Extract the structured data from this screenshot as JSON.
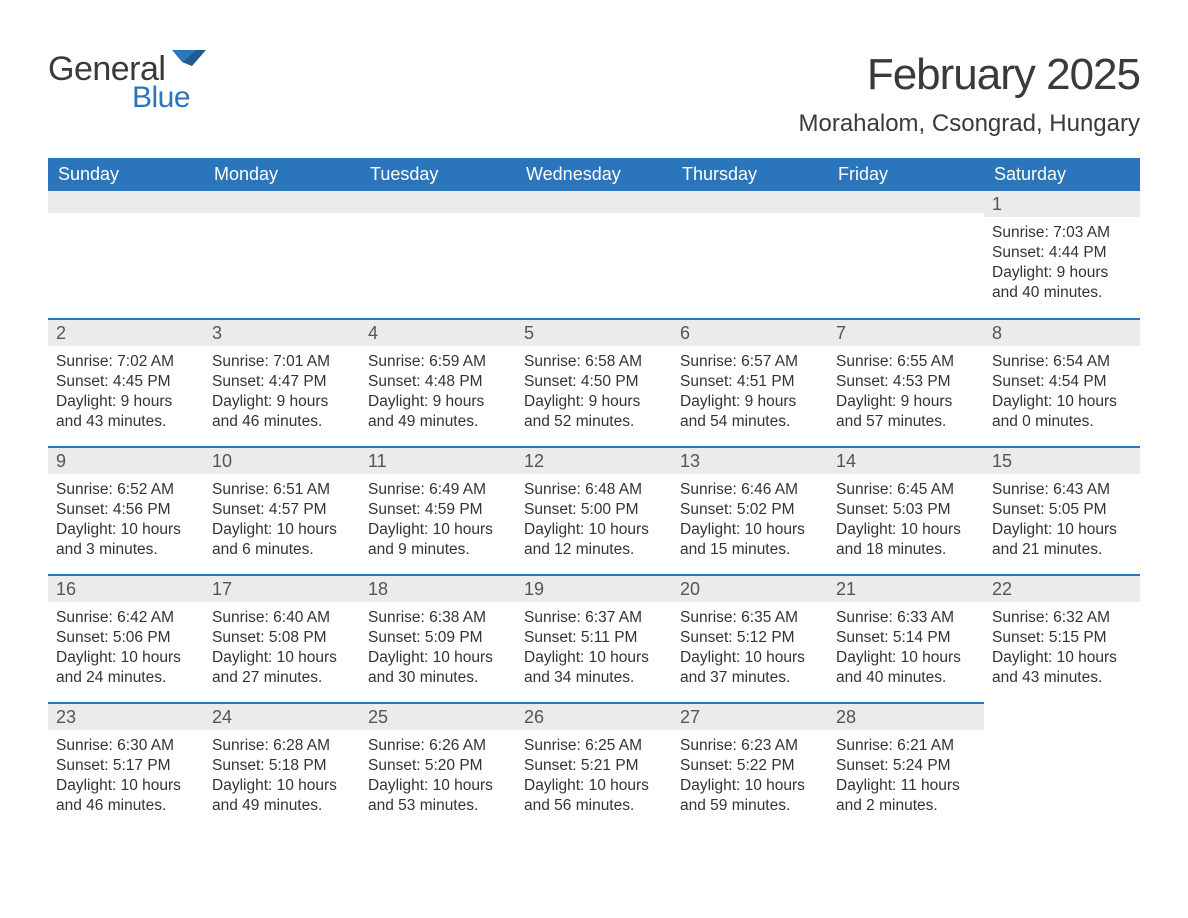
{
  "logo": {
    "general": "General",
    "blue": "Blue"
  },
  "title": "February 2025",
  "location": "Morahalom, Csongrad, Hungary",
  "columns": [
    "Sunday",
    "Monday",
    "Tuesday",
    "Wednesday",
    "Thursday",
    "Friday",
    "Saturday"
  ],
  "colors": {
    "header_bg": "#2a75bb",
    "header_text": "#ffffff",
    "daynum_bg": "#ebebeb",
    "cell_border": "#2a75bb",
    "logo_blue": "#2a75bb",
    "body_text": "#333333",
    "page_bg": "#ffffff"
  },
  "weeks": [
    [
      {
        "n": "",
        "sr": "",
        "ss": "",
        "dl": ""
      },
      {
        "n": "",
        "sr": "",
        "ss": "",
        "dl": ""
      },
      {
        "n": "",
        "sr": "",
        "ss": "",
        "dl": ""
      },
      {
        "n": "",
        "sr": "",
        "ss": "",
        "dl": ""
      },
      {
        "n": "",
        "sr": "",
        "ss": "",
        "dl": ""
      },
      {
        "n": "",
        "sr": "",
        "ss": "",
        "dl": ""
      },
      {
        "n": "1",
        "sr": "Sunrise: 7:03 AM",
        "ss": "Sunset: 4:44 PM",
        "dl": "Daylight: 9 hours and 40 minutes."
      }
    ],
    [
      {
        "n": "2",
        "sr": "Sunrise: 7:02 AM",
        "ss": "Sunset: 4:45 PM",
        "dl": "Daylight: 9 hours and 43 minutes."
      },
      {
        "n": "3",
        "sr": "Sunrise: 7:01 AM",
        "ss": "Sunset: 4:47 PM",
        "dl": "Daylight: 9 hours and 46 minutes."
      },
      {
        "n": "4",
        "sr": "Sunrise: 6:59 AM",
        "ss": "Sunset: 4:48 PM",
        "dl": "Daylight: 9 hours and 49 minutes."
      },
      {
        "n": "5",
        "sr": "Sunrise: 6:58 AM",
        "ss": "Sunset: 4:50 PM",
        "dl": "Daylight: 9 hours and 52 minutes."
      },
      {
        "n": "6",
        "sr": "Sunrise: 6:57 AM",
        "ss": "Sunset: 4:51 PM",
        "dl": "Daylight: 9 hours and 54 minutes."
      },
      {
        "n": "7",
        "sr": "Sunrise: 6:55 AM",
        "ss": "Sunset: 4:53 PM",
        "dl": "Daylight: 9 hours and 57 minutes."
      },
      {
        "n": "8",
        "sr": "Sunrise: 6:54 AM",
        "ss": "Sunset: 4:54 PM",
        "dl": "Daylight: 10 hours and 0 minutes."
      }
    ],
    [
      {
        "n": "9",
        "sr": "Sunrise: 6:52 AM",
        "ss": "Sunset: 4:56 PM",
        "dl": "Daylight: 10 hours and 3 minutes."
      },
      {
        "n": "10",
        "sr": "Sunrise: 6:51 AM",
        "ss": "Sunset: 4:57 PM",
        "dl": "Daylight: 10 hours and 6 minutes."
      },
      {
        "n": "11",
        "sr": "Sunrise: 6:49 AM",
        "ss": "Sunset: 4:59 PM",
        "dl": "Daylight: 10 hours and 9 minutes."
      },
      {
        "n": "12",
        "sr": "Sunrise: 6:48 AM",
        "ss": "Sunset: 5:00 PM",
        "dl": "Daylight: 10 hours and 12 minutes."
      },
      {
        "n": "13",
        "sr": "Sunrise: 6:46 AM",
        "ss": "Sunset: 5:02 PM",
        "dl": "Daylight: 10 hours and 15 minutes."
      },
      {
        "n": "14",
        "sr": "Sunrise: 6:45 AM",
        "ss": "Sunset: 5:03 PM",
        "dl": "Daylight: 10 hours and 18 minutes."
      },
      {
        "n": "15",
        "sr": "Sunrise: 6:43 AM",
        "ss": "Sunset: 5:05 PM",
        "dl": "Daylight: 10 hours and 21 minutes."
      }
    ],
    [
      {
        "n": "16",
        "sr": "Sunrise: 6:42 AM",
        "ss": "Sunset: 5:06 PM",
        "dl": "Daylight: 10 hours and 24 minutes."
      },
      {
        "n": "17",
        "sr": "Sunrise: 6:40 AM",
        "ss": "Sunset: 5:08 PM",
        "dl": "Daylight: 10 hours and 27 minutes."
      },
      {
        "n": "18",
        "sr": "Sunrise: 6:38 AM",
        "ss": "Sunset: 5:09 PM",
        "dl": "Daylight: 10 hours and 30 minutes."
      },
      {
        "n": "19",
        "sr": "Sunrise: 6:37 AM",
        "ss": "Sunset: 5:11 PM",
        "dl": "Daylight: 10 hours and 34 minutes."
      },
      {
        "n": "20",
        "sr": "Sunrise: 6:35 AM",
        "ss": "Sunset: 5:12 PM",
        "dl": "Daylight: 10 hours and 37 minutes."
      },
      {
        "n": "21",
        "sr": "Sunrise: 6:33 AM",
        "ss": "Sunset: 5:14 PM",
        "dl": "Daylight: 10 hours and 40 minutes."
      },
      {
        "n": "22",
        "sr": "Sunrise: 6:32 AM",
        "ss": "Sunset: 5:15 PM",
        "dl": "Daylight: 10 hours and 43 minutes."
      }
    ],
    [
      {
        "n": "23",
        "sr": "Sunrise: 6:30 AM",
        "ss": "Sunset: 5:17 PM",
        "dl": "Daylight: 10 hours and 46 minutes."
      },
      {
        "n": "24",
        "sr": "Sunrise: 6:28 AM",
        "ss": "Sunset: 5:18 PM",
        "dl": "Daylight: 10 hours and 49 minutes."
      },
      {
        "n": "25",
        "sr": "Sunrise: 6:26 AM",
        "ss": "Sunset: 5:20 PM",
        "dl": "Daylight: 10 hours and 53 minutes."
      },
      {
        "n": "26",
        "sr": "Sunrise: 6:25 AM",
        "ss": "Sunset: 5:21 PM",
        "dl": "Daylight: 10 hours and 56 minutes."
      },
      {
        "n": "27",
        "sr": "Sunrise: 6:23 AM",
        "ss": "Sunset: 5:22 PM",
        "dl": "Daylight: 10 hours and 59 minutes."
      },
      {
        "n": "28",
        "sr": "Sunrise: 6:21 AM",
        "ss": "Sunset: 5:24 PM",
        "dl": "Daylight: 11 hours and 2 minutes."
      },
      {
        "n": "",
        "sr": "",
        "ss": "",
        "dl": ""
      }
    ]
  ]
}
